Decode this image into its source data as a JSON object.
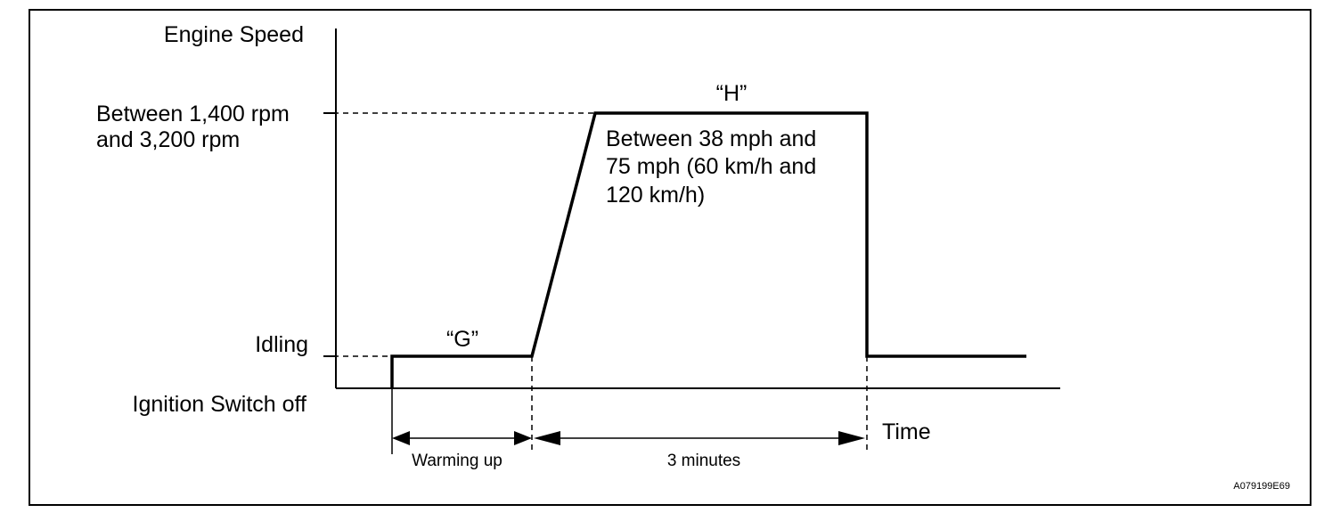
{
  "diagram": {
    "y_axis_title": "Engine Speed",
    "level_high_line1": "Between 1,400 rpm",
    "level_high_line2": "and 3,200 rpm",
    "level_idle": "Idling",
    "level_off": "Ignition Switch off",
    "phase_g_label": "“G”",
    "phase_h_label": "“H”",
    "speed_note_line1": "Between 38 mph and",
    "speed_note_line2": "75 mph (60 km/h and",
    "speed_note_line3": "120 km/h)",
    "x_axis_title": "Time",
    "interval_warmup": "Warming up",
    "interval_3min": "3 minutes",
    "figure_code": "A079199E69"
  },
  "colors": {
    "line": "#000000",
    "background": "#ffffff"
  }
}
